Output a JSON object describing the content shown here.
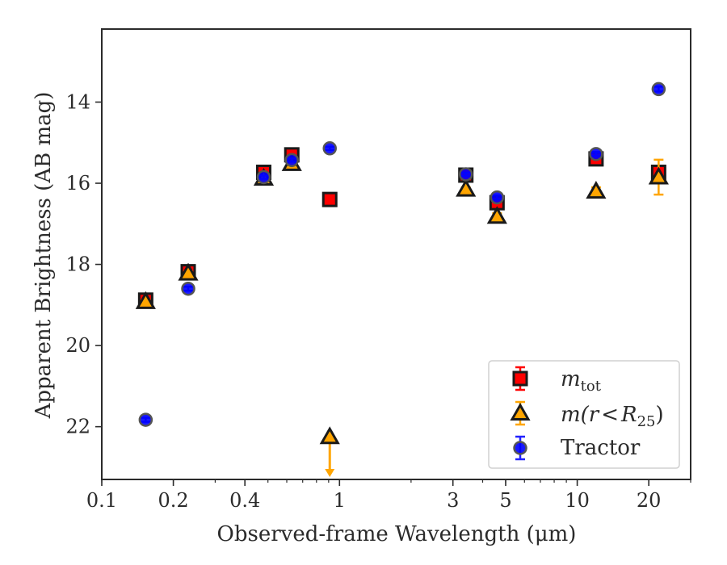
{
  "chart_data": {
    "type": "scatter",
    "xlabel": "Observed-frame Wavelength (μm)",
    "ylabel": "Apparent Brightness (AB mag)",
    "x_scale": "log",
    "xlim": [
      0.1,
      30
    ],
    "ylim": [
      23.3,
      12.2
    ],
    "y_inverted": true,
    "grid": false,
    "legend_position": "lower-right",
    "x_ticks": [
      {
        "value": 0.1,
        "label": "0.1"
      },
      {
        "value": 0.2,
        "label": "0.2"
      },
      {
        "value": 0.4,
        "label": "0.4"
      },
      {
        "value": 1,
        "label": "1"
      },
      {
        "value": 3,
        "label": "3"
      },
      {
        "value": 5,
        "label": "5"
      },
      {
        "value": 10,
        "label": "10"
      },
      {
        "value": 20,
        "label": "20"
      }
    ],
    "y_ticks": [
      {
        "value": 14,
        "label": "14"
      },
      {
        "value": 16,
        "label": "16"
      },
      {
        "value": 18,
        "label": "18"
      },
      {
        "value": 20,
        "label": "20"
      },
      {
        "value": 22,
        "label": "22"
      }
    ],
    "series": [
      {
        "name": "m_tot",
        "label_parts": {
          "base": "m",
          "sub": "tot"
        },
        "marker": "square",
        "color": "#ff0000",
        "edge_color": "#1a1a1a",
        "error_color": "#ff0000",
        "points": [
          {
            "x": 0.153,
            "y": 18.88,
            "err": 0.05
          },
          {
            "x": 0.231,
            "y": 18.18,
            "err": 0.05
          },
          {
            "x": 0.48,
            "y": 15.73,
            "err": 0.05
          },
          {
            "x": 0.63,
            "y": 15.3,
            "err": 0.05
          },
          {
            "x": 0.91,
            "y": 16.4,
            "err": 0.03
          },
          {
            "x": 3.4,
            "y": 15.8,
            "err": 0.05
          },
          {
            "x": 4.6,
            "y": 16.48,
            "err": 0.1
          },
          {
            "x": 12.0,
            "y": 15.4,
            "err": 0.06
          },
          {
            "x": 22.0,
            "y": 15.73,
            "err": 0.12
          }
        ]
      },
      {
        "name": "m(r < R25)",
        "label_parts": {
          "a": "m(r",
          "b": "R",
          "sub": "25",
          "c": ")"
        },
        "marker": "triangle",
        "color": "#ffa500",
        "edge_color": "#1a1a1a",
        "error_color": "#ffa500",
        "points": [
          {
            "x": 0.153,
            "y": 18.92,
            "err": 0.05
          },
          {
            "x": 0.231,
            "y": 18.22,
            "err": 0.05
          },
          {
            "x": 0.48,
            "y": 15.88,
            "err": 0.05
          },
          {
            "x": 0.63,
            "y": 15.52,
            "err": 0.05
          },
          {
            "x": 0.91,
            "y": 22.25,
            "upper_limit": true
          },
          {
            "x": 3.4,
            "y": 16.15,
            "err": 0.05
          },
          {
            "x": 4.6,
            "y": 16.82,
            "err": 0.08
          },
          {
            "x": 12.0,
            "y": 16.2,
            "err": 0.1
          },
          {
            "x": 22.0,
            "y": 15.85,
            "err": 0.43
          }
        ]
      },
      {
        "name": "Tractor",
        "marker": "circle",
        "color": "#0000ff",
        "edge_color": "#555555",
        "error_color": "#2222ff",
        "points": [
          {
            "x": 0.153,
            "y": 21.83,
            "err": 0.05
          },
          {
            "x": 0.231,
            "y": 18.6,
            "err": 0.05
          },
          {
            "x": 0.48,
            "y": 15.85,
            "err": 0.04
          },
          {
            "x": 0.63,
            "y": 15.43,
            "err": 0.04
          },
          {
            "x": 0.91,
            "y": 15.14,
            "err": 0.04
          },
          {
            "x": 3.4,
            "y": 15.78,
            "err": 0.04
          },
          {
            "x": 4.6,
            "y": 16.35,
            "err": 0.05
          },
          {
            "x": 12.0,
            "y": 15.28,
            "err": 0.05
          },
          {
            "x": 22.0,
            "y": 13.68,
            "err": 0.06
          }
        ]
      }
    ],
    "legend": {
      "entries": [
        "m_tot",
        "m(r < R25)",
        "Tractor"
      ]
    }
  }
}
